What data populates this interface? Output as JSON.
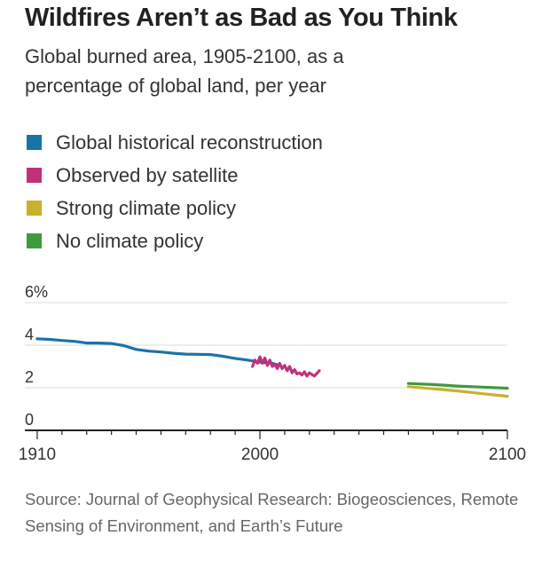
{
  "title": "Wildfires Aren’t as Bad as You Think",
  "subtitle": "Global burned area, 1905-2100, as a percentage of global land, per year",
  "source": "Source: Journal of Geophysical Research: Biogeosciences, Remote Sensing of Environment, and Earth’s Future",
  "colors": {
    "historical": "#1a73a8",
    "satellite": "#c0317a",
    "strong_policy": "#c9b02f",
    "no_policy": "#3f9a3f",
    "grid": "#d9d9d9",
    "axis": "#222222"
  },
  "chart_data": {
    "type": "line",
    "xlim": [
      1905,
      2100
    ],
    "ylim": [
      0,
      6
    ],
    "x_ticks": [
      1910,
      2000,
      2100
    ],
    "y_ticks": [
      0,
      2,
      4,
      6
    ],
    "y_tick_labels": [
      "0",
      "2",
      "4",
      "6%"
    ],
    "grid": true,
    "legend_position": "top-left",
    "series": [
      {
        "name": "Global historical reconstruction",
        "color": "#1a73a8",
        "points": [
          [
            1910,
            4.3
          ],
          [
            1915,
            4.27
          ],
          [
            1920,
            4.22
          ],
          [
            1925,
            4.18
          ],
          [
            1930,
            4.1
          ],
          [
            1935,
            4.1
          ],
          [
            1940,
            4.08
          ],
          [
            1945,
            3.98
          ],
          [
            1950,
            3.8
          ],
          [
            1955,
            3.72
          ],
          [
            1960,
            3.68
          ],
          [
            1965,
            3.62
          ],
          [
            1970,
            3.58
          ],
          [
            1975,
            3.57
          ],
          [
            1980,
            3.56
          ],
          [
            1985,
            3.48
          ],
          [
            1990,
            3.38
          ],
          [
            1995,
            3.3
          ],
          [
            2000,
            3.2
          ],
          [
            2005,
            3.15
          ],
          [
            2008,
            3.05
          ]
        ]
      },
      {
        "name": "Observed by satellite",
        "color": "#c0317a",
        "points": [
          [
            1997,
            3.0
          ],
          [
            1998,
            3.3
          ],
          [
            1999,
            3.15
          ],
          [
            2000,
            3.45
          ],
          [
            2001,
            3.15
          ],
          [
            2002,
            3.4
          ],
          [
            2003,
            3.05
          ],
          [
            2004,
            3.3
          ],
          [
            2005,
            3.0
          ],
          [
            2006,
            3.1
          ],
          [
            2007,
            2.9
          ],
          [
            2008,
            3.15
          ],
          [
            2009,
            2.9
          ],
          [
            2010,
            3.05
          ],
          [
            2011,
            2.8
          ],
          [
            2012,
            3.0
          ],
          [
            2013,
            2.7
          ],
          [
            2014,
            2.85
          ],
          [
            2015,
            2.65
          ],
          [
            2016,
            2.7
          ],
          [
            2017,
            2.6
          ],
          [
            2018,
            2.75
          ],
          [
            2019,
            2.55
          ],
          [
            2020,
            2.7
          ],
          [
            2022,
            2.55
          ],
          [
            2024,
            2.8
          ]
        ]
      },
      {
        "name": "Strong climate policy",
        "color": "#c9b02f",
        "points": [
          [
            2060,
            2.05
          ],
          [
            2070,
            1.95
          ],
          [
            2080,
            1.85
          ],
          [
            2090,
            1.72
          ],
          [
            2100,
            1.6
          ]
        ]
      },
      {
        "name": "No climate policy",
        "color": "#3f9a3f",
        "points": [
          [
            2060,
            2.2
          ],
          [
            2070,
            2.15
          ],
          [
            2080,
            2.08
          ],
          [
            2090,
            2.03
          ],
          [
            2100,
            1.98
          ]
        ]
      }
    ]
  }
}
